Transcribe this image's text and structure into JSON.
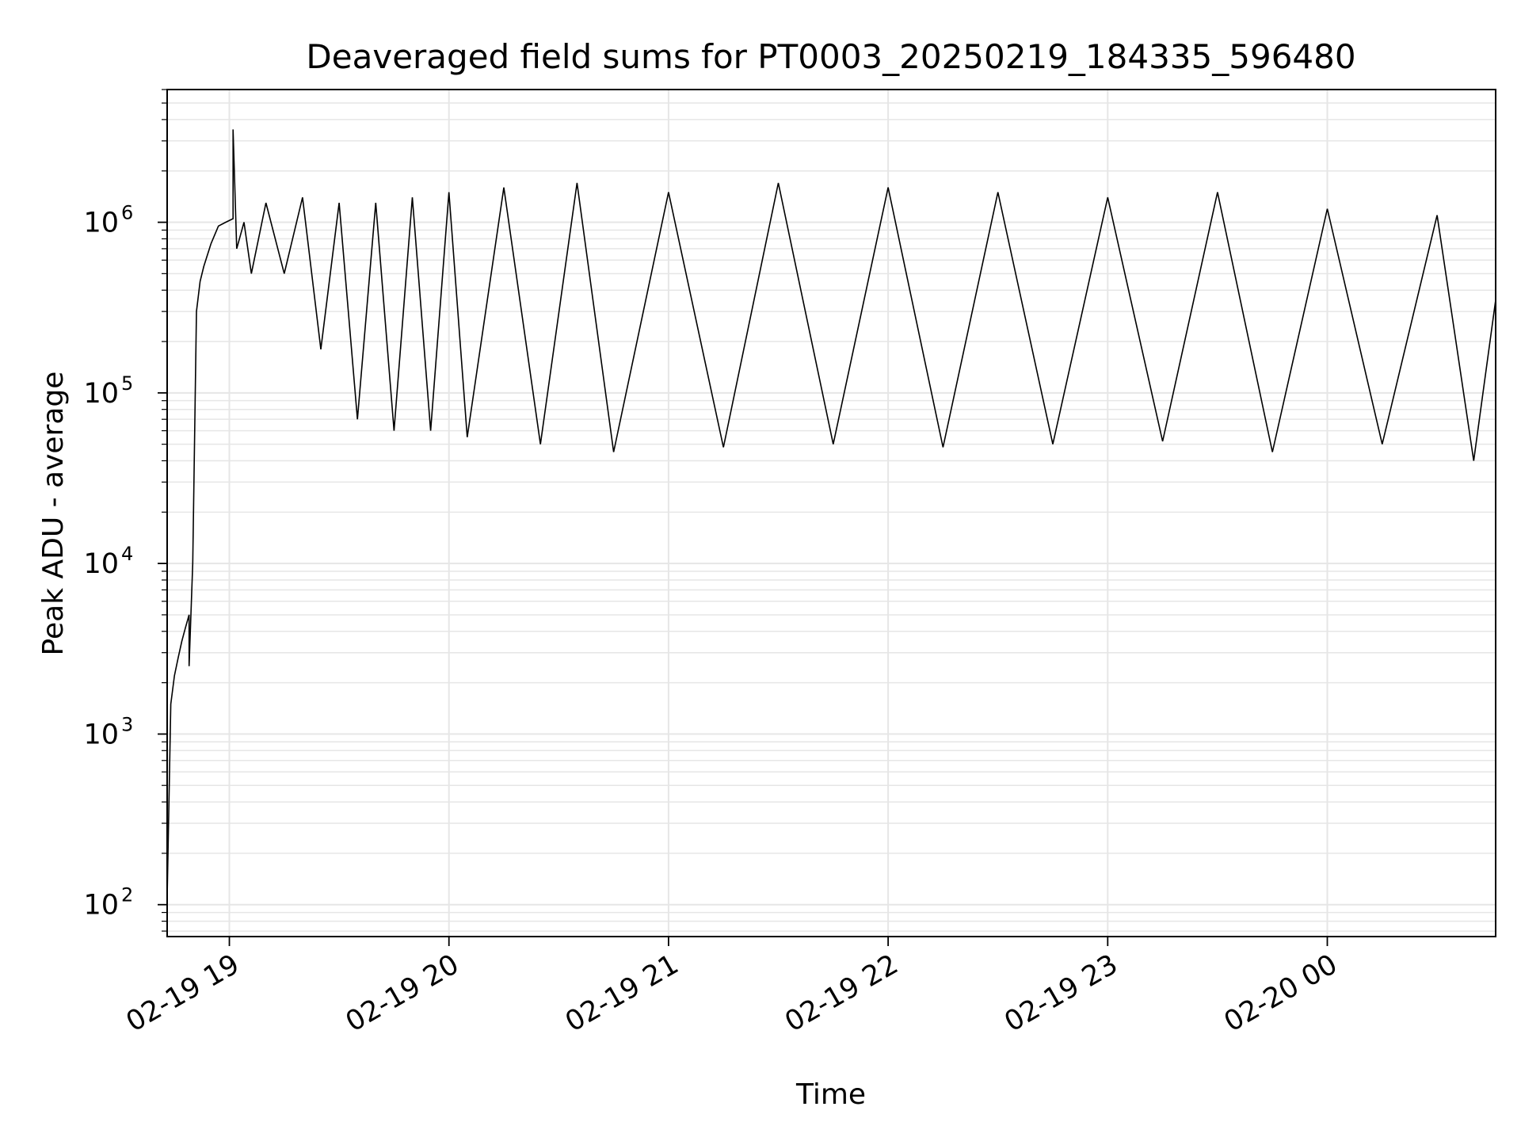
{
  "chart_data": {
    "type": "line",
    "title": "Deaveraged field sums for PT0003_20250219_184335_596480",
    "xlabel": "Time",
    "ylabel": "Peak ADU - average",
    "y_scale": "log",
    "ylim": [
      65,
      6000000
    ],
    "xlim": [
      "2025-02-19 18:43",
      "2025-02-20 00:46"
    ],
    "x_ticks": [
      {
        "time": "2025-02-19 19:00",
        "label": "02-19 19"
      },
      {
        "time": "2025-02-19 20:00",
        "label": "02-19 20"
      },
      {
        "time": "2025-02-19 21:00",
        "label": "02-19 21"
      },
      {
        "time": "2025-02-19 22:00",
        "label": "02-19 22"
      },
      {
        "time": "2025-02-19 23:00",
        "label": "02-19 23"
      },
      {
        "time": "2025-02-20 00:00",
        "label": "02-20 00"
      }
    ],
    "y_ticks": [
      {
        "value": 100,
        "base": "10",
        "exp": "2"
      },
      {
        "value": 1000,
        "base": "10",
        "exp": "3"
      },
      {
        "value": 10000,
        "base": "10",
        "exp": "4"
      },
      {
        "value": 100000,
        "base": "10",
        "exp": "5"
      },
      {
        "value": 1000000,
        "base": "10",
        "exp": "6"
      }
    ],
    "grid": true,
    "grid_color": "#e6e6e6",
    "line_color": "#000000",
    "series": [
      {
        "points": [
          [
            "2025-02-19 18:43",
            200000
          ],
          [
            "2025-02-19 18:43",
            110
          ],
          [
            "2025-02-19 18:44",
            1500
          ],
          [
            "2025-02-19 18:45",
            2200
          ],
          [
            "2025-02-19 18:46",
            2800
          ],
          [
            "2025-02-19 18:47",
            3500
          ],
          [
            "2025-02-19 18:48",
            4200
          ],
          [
            "2025-02-19 18:49",
            5000
          ],
          [
            "2025-02-19 18:49",
            2500
          ],
          [
            "2025-02-19 18:50",
            10000
          ],
          [
            "2025-02-19 18:51",
            300000
          ],
          [
            "2025-02-19 18:52",
            450000
          ],
          [
            "2025-02-19 18:53",
            550000
          ],
          [
            "2025-02-19 18:55",
            750000
          ],
          [
            "2025-02-19 18:57",
            950000
          ],
          [
            "2025-02-19 18:59",
            1000000
          ],
          [
            "2025-02-19 19:01",
            1050000
          ],
          [
            "2025-02-19 19:01",
            3500000
          ],
          [
            "2025-02-19 19:02",
            700000
          ],
          [
            "2025-02-19 19:04",
            1000000
          ],
          [
            "2025-02-19 19:06",
            500000
          ],
          [
            "2025-02-19 19:10",
            1300000
          ],
          [
            "2025-02-19 19:15",
            500000
          ],
          [
            "2025-02-19 19:20",
            1400000
          ],
          [
            "2025-02-19 19:25",
            180000
          ],
          [
            "2025-02-19 19:30",
            1300000
          ],
          [
            "2025-02-19 19:35",
            70000
          ],
          [
            "2025-02-19 19:40",
            1300000
          ],
          [
            "2025-02-19 19:45",
            60000
          ],
          [
            "2025-02-19 19:50",
            1400000
          ],
          [
            "2025-02-19 19:55",
            60000
          ],
          [
            "2025-02-19 20:00",
            1500000
          ],
          [
            "2025-02-19 20:05",
            55000
          ],
          [
            "2025-02-19 20:15",
            1600000
          ],
          [
            "2025-02-19 20:25",
            50000
          ],
          [
            "2025-02-19 20:35",
            1700000
          ],
          [
            "2025-02-19 20:45",
            45000
          ],
          [
            "2025-02-19 21:00",
            1500000
          ],
          [
            "2025-02-19 21:15",
            48000
          ],
          [
            "2025-02-19 21:30",
            1700000
          ],
          [
            "2025-02-19 21:45",
            50000
          ],
          [
            "2025-02-19 22:00",
            1600000
          ],
          [
            "2025-02-19 22:15",
            48000
          ],
          [
            "2025-02-19 22:30",
            1500000
          ],
          [
            "2025-02-19 22:45",
            50000
          ],
          [
            "2025-02-19 23:00",
            1400000
          ],
          [
            "2025-02-19 23:15",
            52000
          ],
          [
            "2025-02-19 23:30",
            1500000
          ],
          [
            "2025-02-19 23:45",
            45000
          ],
          [
            "2025-02-20 00:00",
            1200000
          ],
          [
            "2025-02-20 00:15",
            50000
          ],
          [
            "2025-02-20 00:30",
            1100000
          ],
          [
            "2025-02-20 00:40",
            40000
          ],
          [
            "2025-02-20 00:46",
            350000
          ]
        ]
      }
    ]
  }
}
